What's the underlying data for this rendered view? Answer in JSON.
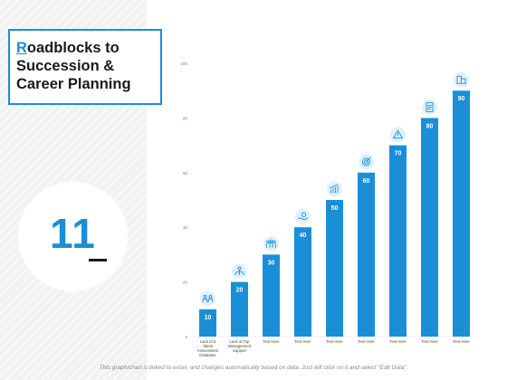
{
  "title": {
    "first_letter": "R",
    "rest": "oadblocks to Succession & Career Planning"
  },
  "slide_number": "11",
  "footer": "This graph/chart is linked to excel, and changes automatically based on data. Just left click on it and select “Edit Data”.",
  "colors": {
    "accent": "#1a8fd8",
    "bar": "#1a8fd8",
    "icon_bg": "#dff1fb"
  },
  "chart_data": {
    "type": "bar",
    "categories": [
      "Lack of a Talent Assessment Database",
      "Lack of Top Management Support",
      "Text Here",
      "Text Here",
      "Text Here",
      "Text Here",
      "Text Here",
      "Text Here",
      "Text Here"
    ],
    "values": [
      10,
      20,
      30,
      40,
      50,
      60,
      70,
      80,
      90
    ],
    "ylim": [
      0,
      100
    ],
    "yticks": [
      0,
      20,
      40,
      60,
      80,
      100
    ],
    "grid": false,
    "data_labels": true,
    "icons": [
      "people-icon",
      "leader-icon",
      "team-icon",
      "money-hand-icon",
      "bar-growth-icon",
      "target-icon",
      "warning-icon",
      "document-icon",
      "building-icon"
    ]
  }
}
